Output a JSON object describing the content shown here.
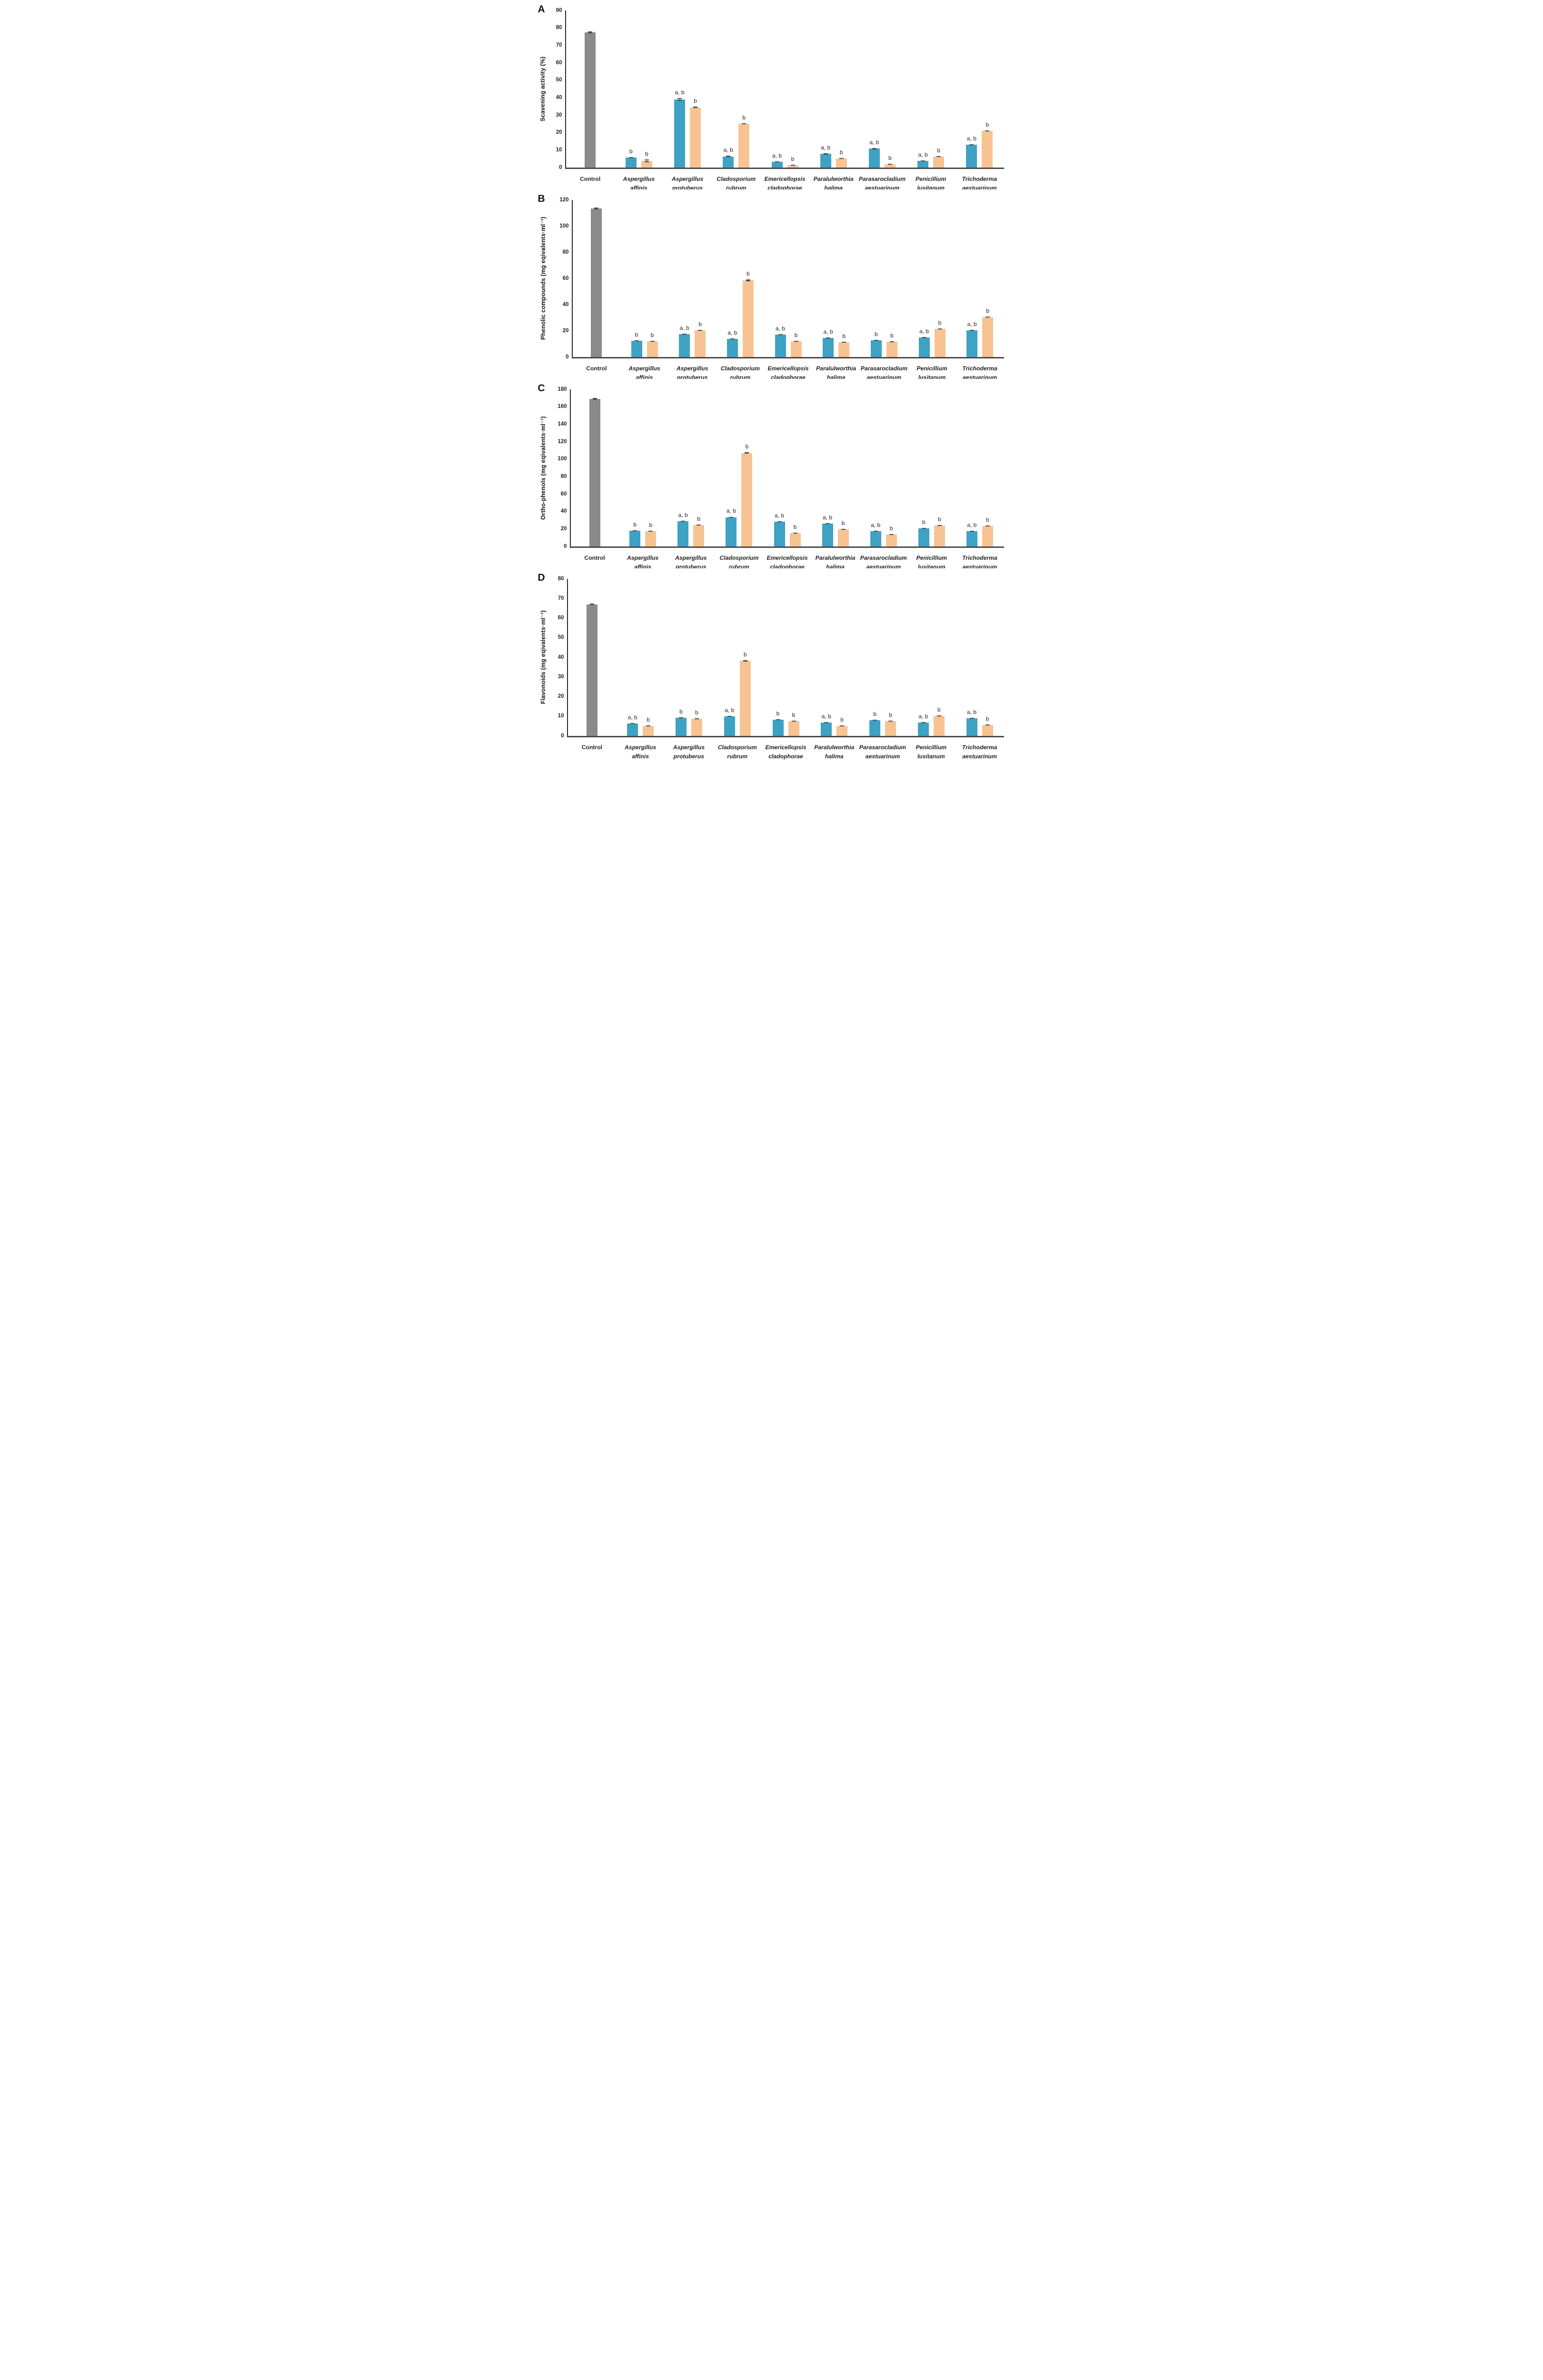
{
  "figure": {
    "colors": {
      "control": "#8a8a8a",
      "teal": "#3da2c4",
      "orange": "#f8c392",
      "error": "#4d4d4d",
      "axis": "#262626",
      "baseline": "#4a4a4a",
      "text": "#1f1f1f"
    }
  },
  "chart_data": [
    {
      "type": "bar",
      "panel": "A",
      "title": "",
      "xlabel": "",
      "ylabel": "Scavening activity (%)",
      "ylim": [
        0,
        90
      ],
      "yticks": [
        0,
        10,
        20,
        30,
        40,
        50,
        60,
        70,
        80,
        90
      ],
      "grid": false,
      "legend": null,
      "groups": [
        {
          "label_lines": [
            "Control"
          ],
          "italic": false,
          "bars": [
            {
              "series": "control",
              "value": 77.5,
              "err": 0.5,
              "note": ""
            }
          ]
        },
        {
          "label_lines": [
            "Aspergillus",
            "affinis"
          ],
          "italic": true,
          "bars": [
            {
              "series": "teal",
              "value": 5.8,
              "err": 0.25,
              "note": "b"
            },
            {
              "series": "orange",
              "value": 3.8,
              "err": 0.9,
              "note": "b"
            }
          ]
        },
        {
          "label_lines": [
            "Aspergillus",
            "protuberus"
          ],
          "italic": true,
          "bars": [
            {
              "series": "teal",
              "value": 39.0,
              "err": 0.9,
              "note": "a, b"
            },
            {
              "series": "orange",
              "value": 34.5,
              "err": 0.3,
              "note": "b"
            }
          ]
        },
        {
          "label_lines": [
            "Cladosporium",
            "rubrum"
          ],
          "italic": true,
          "bars": [
            {
              "series": "teal",
              "value": 6.4,
              "err": 0.3,
              "note": "a, b"
            },
            {
              "series": "orange",
              "value": 25.0,
              "err": 0.3,
              "note": "b"
            }
          ]
        },
        {
          "label_lines": [
            "Emericellopsis",
            "cladophorae"
          ],
          "italic": true,
          "bars": [
            {
              "series": "teal",
              "value": 3.4,
              "err": 0.2,
              "note": "a, b"
            },
            {
              "series": "orange",
              "value": 1.3,
              "err": 0.15,
              "note": "b"
            }
          ]
        },
        {
          "label_lines": [
            "Paralulworthia",
            "halima"
          ],
          "italic": true,
          "bars": [
            {
              "series": "teal",
              "value": 7.8,
              "err": 0.3,
              "note": "a, b"
            },
            {
              "series": "orange",
              "value": 5.2,
              "err": 0.2,
              "note": "b"
            }
          ]
        },
        {
          "label_lines": [
            "Parasarocladium",
            "aestuarinum"
          ],
          "italic": true,
          "bars": [
            {
              "series": "teal",
              "value": 10.8,
              "err": 0.3,
              "note": "a, b"
            },
            {
              "series": "orange",
              "value": 1.8,
              "err": 0.2,
              "note": "b"
            }
          ]
        },
        {
          "label_lines": [
            "Penicillium",
            "lusitanum"
          ],
          "italic": true,
          "bars": [
            {
              "series": "teal",
              "value": 3.9,
              "err": 0.2,
              "note": "a, b"
            },
            {
              "series": "orange",
              "value": 6.3,
              "err": 0.2,
              "note": "b"
            }
          ]
        },
        {
          "label_lines": [
            "Trichoderma",
            "aestuarinum"
          ],
          "italic": true,
          "bars": [
            {
              "series": "teal",
              "value": 13.0,
              "err": 0.3,
              "note": "a, b"
            },
            {
              "series": "orange",
              "value": 21.0,
              "err": 0.2,
              "note": "b"
            }
          ]
        }
      ]
    },
    {
      "type": "bar",
      "panel": "B",
      "title": "",
      "xlabel": "",
      "ylabel": "Phenolic compounds (mg eqivalents·ml⁻¹)",
      "ylim": [
        0,
        120
      ],
      "yticks": [
        0,
        20,
        40,
        60,
        80,
        100,
        120
      ],
      "grid": false,
      "legend": null,
      "groups": [
        {
          "label_lines": [
            "Control"
          ],
          "italic": false,
          "bars": [
            {
              "series": "control",
              "value": 113.5,
              "err": 0.8,
              "note": ""
            }
          ]
        },
        {
          "label_lines": [
            "Aspergillus",
            "affinis"
          ],
          "italic": true,
          "bars": [
            {
              "series": "teal",
              "value": 12.5,
              "err": 0.3,
              "note": "b"
            },
            {
              "series": "orange",
              "value": 12.0,
              "err": 0.3,
              "note": "b"
            }
          ]
        },
        {
          "label_lines": [
            "Aspergillus",
            "protuberus"
          ],
          "italic": true,
          "bars": [
            {
              "series": "teal",
              "value": 17.5,
              "err": 0.4,
              "note": "a, b"
            },
            {
              "series": "orange",
              "value": 20.5,
              "err": 0.3,
              "note": "b"
            }
          ]
        },
        {
          "label_lines": [
            "Cladosporium",
            "rubrum"
          ],
          "italic": true,
          "bars": [
            {
              "series": "teal",
              "value": 13.8,
              "err": 0.3,
              "note": "a, b"
            },
            {
              "series": "orange",
              "value": 58.5,
              "err": 0.6,
              "note": "b"
            }
          ]
        },
        {
          "label_lines": [
            "Emericellopsis",
            "cladophorae"
          ],
          "italic": true,
          "bars": [
            {
              "series": "teal",
              "value": 17.0,
              "err": 0.4,
              "note": "a, b"
            },
            {
              "series": "orange",
              "value": 12.0,
              "err": 0.3,
              "note": "b"
            }
          ]
        },
        {
          "label_lines": [
            "Paralulworthia",
            "halima"
          ],
          "italic": true,
          "bars": [
            {
              "series": "teal",
              "value": 14.5,
              "err": 0.3,
              "note": "a, b"
            },
            {
              "series": "orange",
              "value": 11.3,
              "err": 0.3,
              "note": "b"
            }
          ]
        },
        {
          "label_lines": [
            "Parasarocladium",
            "aestuarinum"
          ],
          "italic": true,
          "bars": [
            {
              "series": "teal",
              "value": 12.7,
              "err": 0.3,
              "note": "b"
            },
            {
              "series": "orange",
              "value": 11.8,
              "err": 0.3,
              "note": "b"
            }
          ]
        },
        {
          "label_lines": [
            "Penicillium",
            "lusitanum"
          ],
          "italic": true,
          "bars": [
            {
              "series": "teal",
              "value": 15.0,
              "err": 0.3,
              "note": "a, b"
            },
            {
              "series": "orange",
              "value": 21.3,
              "err": 0.3,
              "note": "b"
            }
          ]
        },
        {
          "label_lines": [
            "Trichoderma",
            "aestuarinum"
          ],
          "italic": true,
          "bars": [
            {
              "series": "teal",
              "value": 20.3,
              "err": 0.3,
              "note": "a, b"
            },
            {
              "series": "orange",
              "value": 30.5,
              "err": 0.3,
              "note": "b"
            }
          ]
        }
      ]
    },
    {
      "type": "bar",
      "panel": "C",
      "title": "",
      "xlabel": "",
      "ylabel": "Ortho-phenols (mg eqivalents·ml⁻¹)",
      "ylim": [
        0,
        180
      ],
      "yticks": [
        0,
        20,
        40,
        60,
        80,
        100,
        120,
        140,
        160,
        180
      ],
      "grid": false,
      "legend": null,
      "groups": [
        {
          "label_lines": [
            "Control"
          ],
          "italic": false,
          "bars": [
            {
              "series": "control",
              "value": 169.0,
              "err": 1.0,
              "note": ""
            }
          ]
        },
        {
          "label_lines": [
            "Aspergillus",
            "affinis"
          ],
          "italic": true,
          "bars": [
            {
              "series": "teal",
              "value": 18.0,
              "err": 0.4,
              "note": "b"
            },
            {
              "series": "orange",
              "value": 17.5,
              "err": 0.4,
              "note": "b"
            }
          ]
        },
        {
          "label_lines": [
            "Aspergillus",
            "protuberus"
          ],
          "italic": true,
          "bars": [
            {
              "series": "teal",
              "value": 29.0,
              "err": 0.5,
              "note": "a, b"
            },
            {
              "series": "orange",
              "value": 24.5,
              "err": 0.4,
              "note": "b"
            }
          ]
        },
        {
          "label_lines": [
            "Cladosporium",
            "rubrum"
          ],
          "italic": true,
          "bars": [
            {
              "series": "teal",
              "value": 33.5,
              "err": 0.6,
              "note": "a, b"
            },
            {
              "series": "orange",
              "value": 107.0,
              "err": 0.8,
              "note": "b"
            }
          ]
        },
        {
          "label_lines": [
            "Emericellopsis",
            "cladophorae"
          ],
          "italic": true,
          "bars": [
            {
              "series": "teal",
              "value": 28.5,
              "err": 0.5,
              "note": "a, b"
            },
            {
              "series": "orange",
              "value": 15.5,
              "err": 0.4,
              "note": "b"
            }
          ]
        },
        {
          "label_lines": [
            "Paralulworthia",
            "halima"
          ],
          "italic": true,
          "bars": [
            {
              "series": "teal",
              "value": 26.0,
              "err": 0.5,
              "note": "a, b"
            },
            {
              "series": "orange",
              "value": 19.5,
              "err": 0.4,
              "note": "b"
            }
          ]
        },
        {
          "label_lines": [
            "Parasarocladium",
            "aestuarinum"
          ],
          "italic": true,
          "bars": [
            {
              "series": "teal",
              "value": 17.5,
              "err": 0.4,
              "note": "a, b"
            },
            {
              "series": "orange",
              "value": 13.5,
              "err": 0.4,
              "note": "b"
            }
          ]
        },
        {
          "label_lines": [
            "Penicillium",
            "lusitanum"
          ],
          "italic": true,
          "bars": [
            {
              "series": "teal",
              "value": 21.0,
              "err": 0.5,
              "note": "b"
            },
            {
              "series": "orange",
              "value": 24.0,
              "err": 0.4,
              "note": "b"
            }
          ]
        },
        {
          "label_lines": [
            "Trichoderma",
            "aestuarinum"
          ],
          "italic": true,
          "bars": [
            {
              "series": "teal",
              "value": 17.3,
              "err": 0.4,
              "note": "a, b"
            },
            {
              "series": "orange",
              "value": 23.5,
              "err": 0.4,
              "note": "b"
            }
          ]
        }
      ]
    },
    {
      "type": "bar",
      "panel": "D",
      "title": "",
      "xlabel": "",
      "ylabel": "Flavonoids (mg eqivalents·ml⁻¹)",
      "ylim": [
        0,
        80
      ],
      "yticks": [
        0,
        10,
        20,
        30,
        40,
        50,
        60,
        70,
        80
      ],
      "grid": false,
      "legend": null,
      "groups": [
        {
          "label_lines": [
            "Control"
          ],
          "italic": false,
          "bars": [
            {
              "series": "control",
              "value": 67.0,
              "err": 0.4,
              "note": ""
            }
          ]
        },
        {
          "label_lines": [
            "Aspergillus",
            "affinis"
          ],
          "italic": true,
          "bars": [
            {
              "series": "teal",
              "value": 6.3,
              "err": 0.2,
              "note": "a, b"
            },
            {
              "series": "orange",
              "value": 5.2,
              "err": 0.2,
              "note": "b"
            }
          ]
        },
        {
          "label_lines": [
            "Aspergillus",
            "protuberus"
          ],
          "italic": true,
          "bars": [
            {
              "series": "teal",
              "value": 9.3,
              "err": 0.25,
              "note": "b"
            },
            {
              "series": "orange",
              "value": 8.8,
              "err": 0.25,
              "note": "b"
            }
          ]
        },
        {
          "label_lines": [
            "Cladosporium",
            "rubrum"
          ],
          "italic": true,
          "bars": [
            {
              "series": "teal",
              "value": 9.9,
              "err": 0.25,
              "note": "a, b"
            },
            {
              "series": "orange",
              "value": 38.2,
              "err": 0.3,
              "note": "b"
            }
          ]
        },
        {
          "label_lines": [
            "Emericellopsis",
            "cladophorae"
          ],
          "italic": true,
          "bars": [
            {
              "series": "teal",
              "value": 8.2,
              "err": 0.2,
              "note": "b"
            },
            {
              "series": "orange",
              "value": 7.5,
              "err": 0.2,
              "note": "b"
            }
          ]
        },
        {
          "label_lines": [
            "Paralulworthia",
            "halima"
          ],
          "italic": true,
          "bars": [
            {
              "series": "teal",
              "value": 6.9,
              "err": 0.2,
              "note": "a, b"
            },
            {
              "series": "orange",
              "value": 5.2,
              "err": 0.2,
              "note": "b"
            }
          ]
        },
        {
          "label_lines": [
            "Parasarocladium",
            "aestuarinum"
          ],
          "italic": true,
          "bars": [
            {
              "series": "teal",
              "value": 7.9,
              "err": 0.2,
              "note": "b"
            },
            {
              "series": "orange",
              "value": 7.5,
              "err": 0.2,
              "note": "b"
            }
          ]
        },
        {
          "label_lines": [
            "Penicillium",
            "lusitanum"
          ],
          "italic": true,
          "bars": [
            {
              "series": "teal",
              "value": 6.7,
              "err": 0.2,
              "note": "a, b"
            },
            {
              "series": "orange",
              "value": 10.1,
              "err": 0.25,
              "note": "b"
            }
          ]
        },
        {
          "label_lines": [
            "Trichoderma",
            "aestuarinum"
          ],
          "italic": true,
          "bars": [
            {
              "series": "teal",
              "value": 9.0,
              "err": 0.25,
              "note": "a, b"
            },
            {
              "series": "orange",
              "value": 5.5,
              "err": 0.2,
              "note": "b"
            }
          ]
        }
      ]
    }
  ]
}
